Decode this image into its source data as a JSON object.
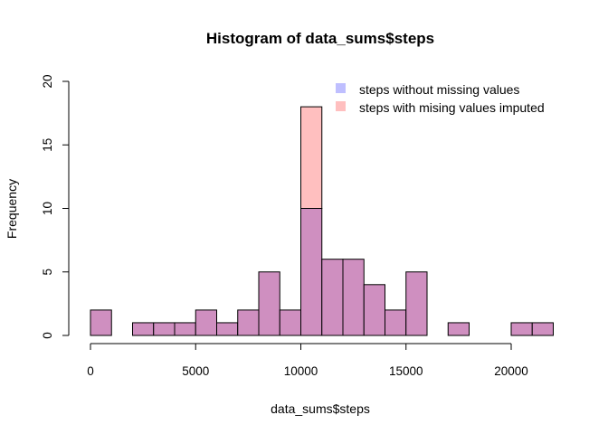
{
  "chart_data": {
    "type": "bar",
    "title": "Histogram of data_sums$steps",
    "xlabel": "data_sums$steps",
    "ylabel": "Frequency",
    "bin_width": 1000,
    "bin_starts": [
      0,
      1000,
      2000,
      3000,
      4000,
      5000,
      6000,
      7000,
      8000,
      9000,
      10000,
      11000,
      12000,
      13000,
      14000,
      15000,
      16000,
      17000,
      18000,
      19000,
      20000,
      21000
    ],
    "series": [
      {
        "name": "steps with mising values imputed",
        "color": "#ffbfbf",
        "values": [
          2,
          0,
          1,
          1,
          1,
          2,
          1,
          2,
          5,
          2,
          18,
          6,
          6,
          4,
          2,
          5,
          0,
          1,
          0,
          0,
          1,
          1
        ]
      },
      {
        "name": "steps without missing values",
        "color": "#bfbfff",
        "values": [
          2,
          0,
          1,
          1,
          1,
          2,
          1,
          2,
          5,
          2,
          10,
          6,
          6,
          4,
          2,
          5,
          0,
          1,
          0,
          0,
          1,
          1
        ]
      }
    ],
    "overlap_color": "#cf8fc0",
    "xlim": [
      0,
      22000
    ],
    "xticks": [
      0,
      5000,
      10000,
      15000,
      20000
    ],
    "xtick_labels": [
      "0",
      "5000",
      "10000",
      "15000",
      "20000"
    ],
    "ylim": [
      0,
      20
    ],
    "yticks": [
      0,
      5,
      10,
      15,
      20
    ],
    "ytick_labels": [
      "0",
      "5",
      "10",
      "15",
      "20"
    ],
    "legend": {
      "placement": "top-right",
      "entries": [
        {
          "label": "steps without missing values",
          "color": "#bfbfff"
        },
        {
          "label": "steps with mising values imputed",
          "color": "#ffbfbf"
        }
      ]
    },
    "grid": false
  }
}
